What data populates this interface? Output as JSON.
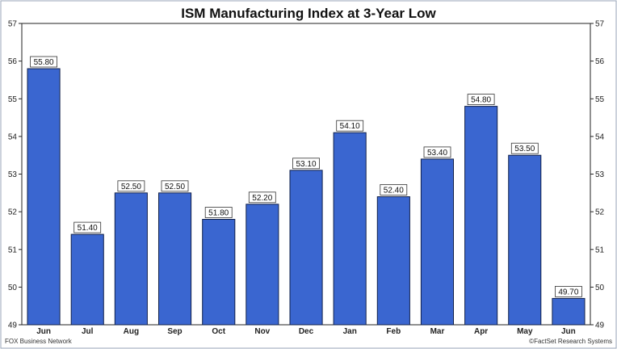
{
  "chart_data": {
    "type": "bar",
    "title": "ISM Manufacturing Index at 3-Year Low",
    "categories": [
      "Jun",
      "Jul",
      "Aug",
      "Sep",
      "Oct",
      "Nov",
      "Dec",
      "Jan",
      "Feb",
      "Mar",
      "Apr",
      "May",
      "Jun"
    ],
    "values": [
      55.8,
      51.4,
      52.5,
      52.5,
      51.8,
      52.2,
      53.1,
      54.1,
      52.4,
      53.4,
      54.8,
      53.5,
      49.7
    ],
    "data_labels": [
      "55.80",
      "51.40",
      "52.50",
      "52.50",
      "51.80",
      "52.20",
      "53.10",
      "54.10",
      "52.40",
      "53.40",
      "54.80",
      "53.50",
      "49.70"
    ],
    "ylim": [
      49,
      57
    ],
    "yticks": [
      "49",
      "50",
      "51",
      "52",
      "53",
      "54",
      "55",
      "56",
      "57"
    ],
    "y_axis_sides": "both",
    "grid": false,
    "bar_color": "#3a66d0",
    "bar_edge_color": "#10204a"
  },
  "footer": {
    "source_left": "FOX Business Network",
    "source_right": "©FactSet Research Systems"
  }
}
